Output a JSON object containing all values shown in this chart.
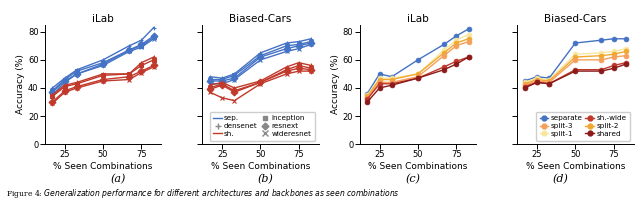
{
  "x_label": "% Seen Combinations",
  "y_label": "Accuracy (%)",
  "y_lim": [
    0,
    85
  ],
  "y_ticks": [
    0,
    20,
    40,
    60,
    80
  ],
  "x_ticks": [
    25,
    50,
    75
  ],
  "caption_labels": [
    "(a)",
    "(b)",
    "(c)",
    "(d)"
  ],
  "subplot_titles": [
    "iLab",
    "Biased-Cars",
    "iLab",
    "Biased-Cars"
  ],
  "ab_x": [
    17,
    25,
    33,
    50,
    67,
    75,
    83
  ],
  "a_sep_densenet": [
    40,
    47,
    53,
    60,
    70,
    74,
    83
  ],
  "a_sep_inception": [
    38,
    46,
    52,
    58,
    67,
    70,
    76
  ],
  "a_sep_resnext": [
    37,
    45,
    50,
    57,
    67,
    71,
    77
  ],
  "a_sep_wideresnet": [
    35,
    44,
    50,
    56,
    66,
    69,
    75
  ],
  "a_sh_densenet": [
    35,
    42,
    44,
    50,
    50,
    58,
    62
  ],
  "a_sh_inception": [
    34,
    41,
    43,
    49,
    50,
    56,
    60
  ],
  "a_sh_resnext": [
    30,
    38,
    41,
    46,
    48,
    52,
    56
  ],
  "a_sh_wideresnet": [
    29,
    37,
    40,
    45,
    46,
    51,
    55
  ],
  "b_sep_densenet": [
    48,
    47,
    50,
    65,
    72,
    73,
    75
  ],
  "b_sep_inception": [
    46,
    46,
    49,
    63,
    70,
    71,
    73
  ],
  "b_sep_resnext": [
    45,
    45,
    47,
    62,
    68,
    70,
    72
  ],
  "b_sep_wideresnet": [
    43,
    43,
    46,
    60,
    66,
    68,
    71
  ],
  "b_sh_densenet": [
    42,
    44,
    40,
    45,
    55,
    58,
    56
  ],
  "b_sh_inception": [
    40,
    43,
    38,
    44,
    53,
    56,
    54
  ],
  "b_sh_resnext": [
    39,
    42,
    37,
    44,
    52,
    54,
    53
  ],
  "b_sh_wideresnet": [
    37,
    33,
    31,
    43,
    50,
    52,
    52
  ],
  "cd_x": [
    17,
    25,
    33,
    50,
    67,
    75,
    83
  ],
  "c_separate": [
    36,
    50,
    48,
    60,
    71,
    77,
    82
  ],
  "c_split1": [
    35,
    47,
    47,
    50,
    67,
    74,
    78
  ],
  "c_split2": [
    34,
    46,
    46,
    50,
    65,
    72,
    75
  ],
  "c_split3": [
    33,
    44,
    44,
    48,
    63,
    70,
    73
  ],
  "c_sh_wide": [
    32,
    43,
    43,
    47,
    55,
    59,
    62
  ],
  "c_shared": [
    30,
    40,
    42,
    47,
    53,
    57,
    62
  ],
  "d_separate": [
    45,
    48,
    47,
    72,
    74,
    75,
    75
  ],
  "d_split1": [
    44,
    47,
    46,
    64,
    65,
    66,
    68
  ],
  "d_split2": [
    43,
    46,
    45,
    62,
    63,
    64,
    66
  ],
  "d_split3": [
    42,
    45,
    44,
    60,
    60,
    62,
    63
  ],
  "d_sh_wide": [
    41,
    44,
    43,
    53,
    53,
    56,
    58
  ],
  "d_shared": [
    40,
    44,
    43,
    52,
    52,
    54,
    57
  ],
  "col_blue": "#4472c4",
  "col_red": "#c0392b",
  "col_separate": "#4472c4",
  "col_split1": "#f7e8a0",
  "col_split2": "#f0a830",
  "col_split3": "#f5a05a",
  "col_sh_wide": "#c0392b",
  "col_shared": "#8b1a1a",
  "col_lgray": "#888888",
  "lw": 1.0,
  "ms": 3.5
}
